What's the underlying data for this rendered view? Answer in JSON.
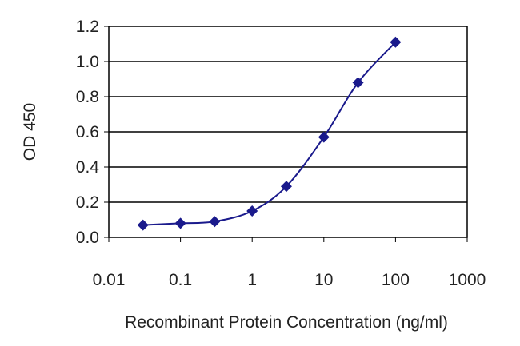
{
  "chart_data": {
    "type": "line",
    "title": "",
    "xlabel": "Recombinant Protein Concentration (ng/ml)",
    "ylabel": "OD 450",
    "xscale": "log",
    "xlim": [
      0.01,
      1000
    ],
    "ylim": [
      0.0,
      1.2
    ],
    "xticks": [
      "0.01",
      "0.1",
      "1",
      "10",
      "100",
      "1000"
    ],
    "yticks": [
      "0.0",
      "0.2",
      "0.4",
      "0.6",
      "0.8",
      "1.0",
      "1.2"
    ],
    "grid": "horizontal",
    "legend": "none",
    "series": [
      {
        "color": "#1a1a8c",
        "marker": "diamond",
        "x": [
          0.03,
          0.1,
          0.3,
          1,
          3,
          10,
          30,
          100
        ],
        "y": [
          0.07,
          0.08,
          0.09,
          0.15,
          0.29,
          0.57,
          0.88,
          1.11
        ]
      }
    ]
  }
}
